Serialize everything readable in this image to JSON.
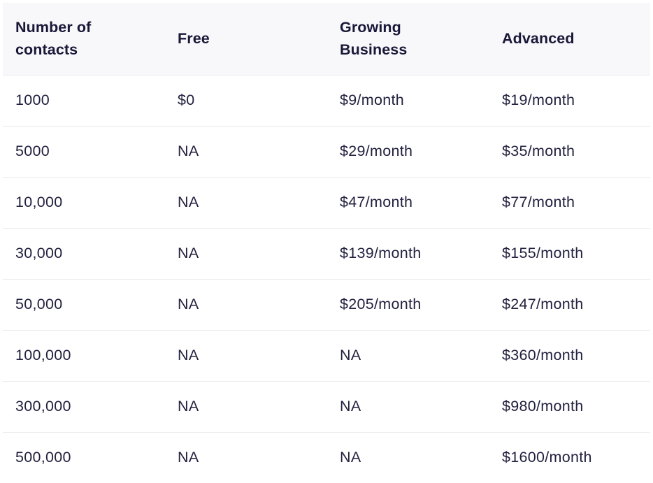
{
  "table": {
    "headers": [
      "Number of contacts",
      "Free",
      "Growing Business",
      "Advanced"
    ],
    "rows": [
      [
        "1000",
        "$0",
        "$9/month",
        "$19/month"
      ],
      [
        "5000",
        "NA",
        "$29/month",
        "$35/month"
      ],
      [
        "10,000",
        "NA",
        "$47/month",
        "$77/month"
      ],
      [
        "30,000",
        "NA",
        "$139/month",
        "$155/month"
      ],
      [
        "50,000",
        "NA",
        "$205/month",
        "$247/month"
      ],
      [
        "100,000",
        "NA",
        "NA",
        "$360/month"
      ],
      [
        "300,000",
        "NA",
        "NA",
        "$980/month"
      ],
      [
        "500,000",
        "NA",
        "NA",
        "$1600/month"
      ]
    ]
  },
  "colors": {
    "header_bg": "#f8f8fa",
    "text": "#1f1d3d",
    "row_divider": "#e9e9ee"
  }
}
